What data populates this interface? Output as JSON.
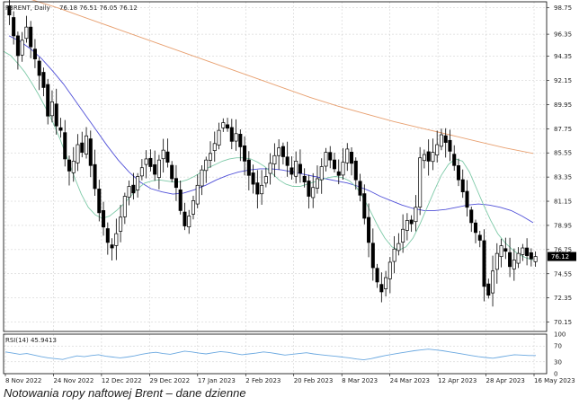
{
  "chart_data": [
    {
      "type": "candlestick",
      "symbol_info": "FBRENT, Daily",
      "ohlc_info": "76.18 76.51 76.05 76.12",
      "last_price": "76.12",
      "y_ticks": [
        "98.75",
        "96.35",
        "94.35",
        "92.15",
        "89.95",
        "87.75",
        "85.55",
        "83.35",
        "81.15",
        "78.95",
        "76.75",
        "74.55",
        "72.35",
        "70.15"
      ],
      "x_ticks": [
        "8 Nov 2022",
        "24 Nov 2022",
        "12 Dec 2022",
        "29 Dec 2022",
        "17 Jan 2023",
        "2 Feb 2023",
        "20 Feb 2023",
        "8 Mar 2023",
        "24 Mar 2023",
        "12 Apr 2023",
        "28 Apr 2023",
        "16 May 2023"
      ],
      "ylim": [
        69.3,
        99.3
      ],
      "grid": true,
      "close_series_approx": [
        98.1,
        96.2,
        94.4,
        95.8,
        97.0,
        95.2,
        94.1,
        92.6,
        91.5,
        88.9,
        90.2,
        88.0,
        87.6,
        85.0,
        83.9,
        84.8,
        86.3,
        85.6,
        87.1,
        84.4,
        82.3,
        80.1,
        78.8,
        77.4,
        76.9,
        78.2,
        79.7,
        81.6,
        82.5,
        81.9,
        83.4,
        84.2,
        85.0,
        84.3,
        83.6,
        84.9,
        85.8,
        84.7,
        83.2,
        82.4,
        80.3,
        78.9,
        79.8,
        81.2,
        82.6,
        84.0,
        84.9,
        85.5,
        86.4,
        87.6,
        88.3,
        87.8,
        86.6,
        87.3,
        86.1,
        84.8,
        83.5,
        82.7,
        81.8,
        82.6,
        83.4,
        84.6,
        85.3,
        86.0,
        85.2,
        84.4,
        83.6,
        84.8,
        83.7,
        82.9,
        81.6,
        82.4,
        83.2,
        84.3,
        85.6,
        84.9,
        84.1,
        83.5,
        84.7,
        85.9,
        84.6,
        83.1,
        81.7,
        79.6,
        77.4,
        75.1,
        73.8,
        72.9,
        74.2,
        75.6,
        76.8,
        77.3,
        78.6,
        79.4,
        79.1,
        80.6,
        85.1,
        85.4,
        84.8,
        85.6,
        86.3,
        87.2,
        86.5,
        85.7,
        84.4,
        83.1,
        82.0,
        80.6,
        79.2,
        78.3,
        77.6,
        73.4,
        72.6,
        74.8,
        76.4,
        77.1,
        76.6,
        75.2,
        75.8,
        76.4,
        76.9,
        76.2,
        75.9,
        76.12
      ],
      "sma_fast_approx": [
        94.8,
        94.4,
        93.7,
        92.9,
        91.9,
        90.8,
        89.6,
        88.3,
        86.8,
        85.1,
        83.4,
        81.8,
        80.6,
        79.9,
        79.6,
        79.8,
        80.3,
        80.9,
        81.6,
        82.3,
        82.8,
        83.0,
        83.1,
        83.0,
        82.9,
        82.9,
        83.1,
        83.4,
        83.8,
        84.2,
        84.5,
        84.8,
        85.0,
        85.1,
        85.1,
        85.0,
        84.7,
        84.3,
        83.7,
        83.1,
        82.7,
        82.5,
        82.5,
        82.7,
        82.9,
        83.1,
        83.3,
        83.4,
        83.3,
        83.0,
        82.4,
        81.4,
        80.2,
        78.9,
        77.8,
        77.0,
        76.7,
        77.0,
        77.8,
        79.1,
        80.6,
        82.1,
        83.5,
        84.5,
        85.0,
        84.8,
        83.8,
        82.3,
        80.8,
        79.4,
        78.2,
        77.4,
        76.8,
        76.3,
        76.0,
        75.8
      ],
      "sma_mid_approx": [
        96.2,
        95.7,
        95.0,
        94.1,
        93.0,
        91.8,
        90.4,
        89.0,
        87.6,
        86.2,
        84.9,
        83.8,
        82.9,
        82.3,
        82.0,
        81.8,
        81.9,
        82.2,
        82.6,
        83.1,
        83.5,
        83.8,
        84.0,
        84.1,
        84.1,
        84.0,
        83.8,
        83.6,
        83.4,
        83.2,
        83.0,
        82.8,
        82.5,
        82.1,
        81.6,
        81.2,
        80.8,
        80.5,
        80.3,
        80.3,
        80.4,
        80.6,
        80.8,
        80.9,
        80.8,
        80.6,
        80.3,
        79.8,
        79.2
      ],
      "sma_slow_approx": [
        100.2,
        99.5,
        98.7,
        97.8,
        96.9,
        96.0,
        95.1,
        94.2,
        93.3,
        92.4,
        91.5,
        90.6,
        89.8,
        89.1,
        88.4,
        87.8,
        87.2,
        86.6,
        86.0,
        85.5
      ],
      "rsi_label": "RSI(14) 45.9413",
      "rsi_ticks": [
        "100",
        "70",
        "30",
        "0"
      ],
      "rsi_approx": [
        55,
        52,
        49,
        51,
        47,
        43,
        40,
        38,
        36,
        41,
        45,
        43,
        46,
        48,
        44,
        42,
        40,
        42,
        45,
        49,
        52,
        54,
        51,
        49,
        53,
        57,
        55,
        52,
        50,
        53,
        56,
        54,
        51,
        48,
        50,
        52,
        55,
        53,
        50,
        47,
        49,
        51,
        53,
        50,
        48,
        46,
        44,
        42,
        40,
        37,
        35,
        38,
        42,
        46,
        49,
        52,
        55,
        58,
        60,
        62,
        60,
        58,
        55,
        52,
        49,
        46,
        43,
        41,
        39,
        42,
        45,
        48,
        47,
        46,
        45.9
      ]
    }
  ],
  "caption": "Notowania ropy naftowej Brent – dane dzienne",
  "colors": {
    "candle": "#000000",
    "sma_fast": "#7ecaa8",
    "sma_mid": "#5050d8",
    "sma_slow": "#e8a070",
    "rsi": "#6aa8e0",
    "grid": "#c8c8c8"
  }
}
